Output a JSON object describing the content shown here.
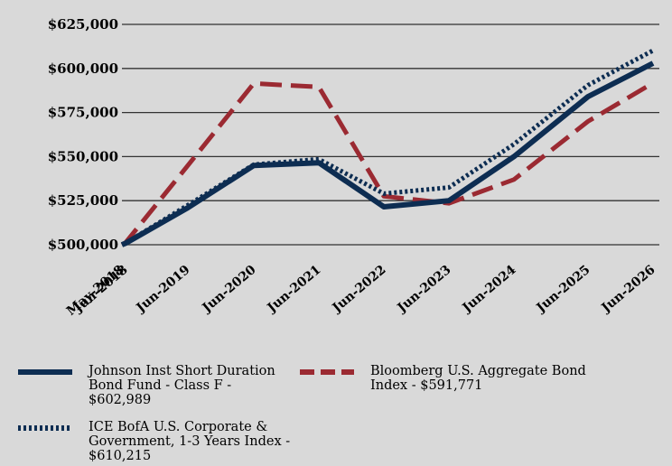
{
  "chart_data": {
    "type": "line",
    "title": "",
    "xlabel": "",
    "ylabel": "",
    "categories": [
      "May-2018",
      "Jun-2018",
      "Jun-2019",
      "Jun-2020",
      "Jun-2021",
      "Jun-2022",
      "Jun-2023",
      "Jun-2024",
      "Jun-2025",
      "Jun-2026"
    ],
    "x_ticks": [
      "May-2018",
      "Jun-2018",
      "Jun-2019",
      "Jun-2020",
      "Jun-2021",
      "Jun-2022",
      "Jun-2023",
      "Jun-2024",
      "Jun-2025",
      "Jun-2026"
    ],
    "y_ticks": [
      "$500,000",
      "$525,000",
      "$550,000",
      "$575,000",
      "$600,000",
      "$625,000"
    ],
    "ylim": [
      500000,
      625000
    ],
    "grid": "horizontal",
    "legend_position": "bottom",
    "series": [
      {
        "name": "Johnson Inst Short Duration Bond Fund - Class F - $602,989",
        "color": "#0d2d52",
        "style": "solid",
        "values": [
          500000,
          500800,
          521000,
          545000,
          546500,
          521500,
          525000,
          550000,
          584000,
          602989
        ]
      },
      {
        "name": "Bloomberg U.S. Aggregate Bond Index - $591,771",
        "color": "#9b2a32",
        "style": "dashed",
        "values": [
          500000,
          501200,
          545000,
          591500,
          589500,
          527500,
          523500,
          537000,
          570000,
          591771
        ]
      },
      {
        "name": "ICE BofA U.S. Corporate & Government, 1-3 Years Index - $610,215",
        "color": "#0d2d52",
        "style": "dotted",
        "values": [
          500000,
          500900,
          522500,
          545500,
          548500,
          529000,
          532500,
          557000,
          590500,
          610215
        ]
      }
    ]
  },
  "legend": {
    "fund": "Johnson Inst Short Duration\nBond Fund - Class F -\n$602,989",
    "bloomberg": "Bloomberg U.S. Aggregate Bond\nIndex - $591,771",
    "ice": "ICE BofA U.S. Corporate &\nGovernment, 1-3 Years Index -\n $610,215"
  },
  "colors": {
    "navy": "#0d2d52",
    "red": "#9b2a32",
    "grid": "#333333",
    "background": "#d9d9d9"
  }
}
